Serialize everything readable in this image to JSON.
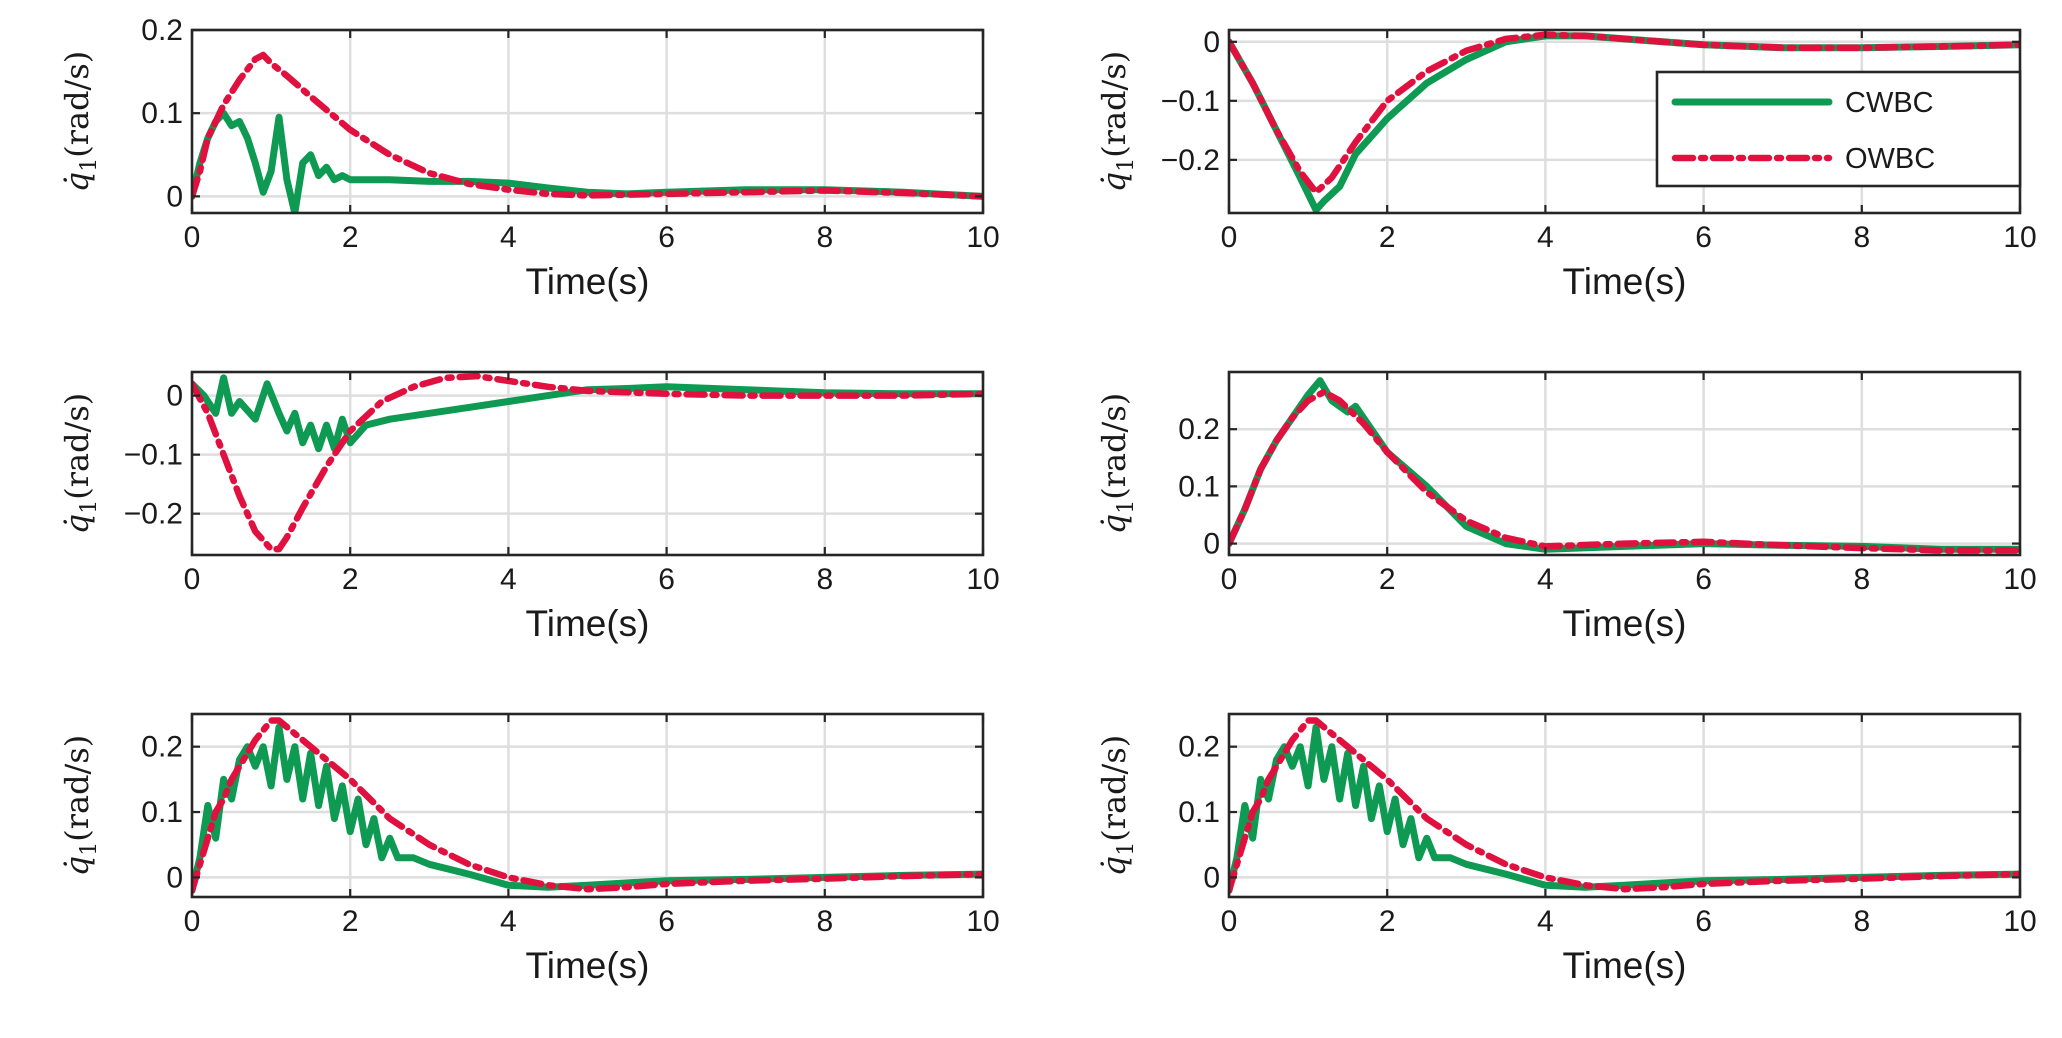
{
  "colors": {
    "CWBC": "#0e9a52",
    "OWBC": "#e0103f"
  },
  "chart_data": [
    {
      "type": "line",
      "position": "top-left",
      "title": "",
      "xlabel": "Time(s)",
      "ylabel_symbol": "q̇",
      "ylabel_sub": "1",
      "ylabel_unit": "(rad/s)",
      "xlim": [
        0,
        10
      ],
      "ylim": [
        -0.02,
        0.2
      ],
      "xticks": [
        0,
        2,
        4,
        6,
        8,
        10
      ],
      "yticks": [
        0,
        0.1,
        0.2
      ],
      "ytick_labels": [
        "0",
        "0.1",
        "0.2"
      ],
      "grid": true,
      "series": [
        {
          "name": "CWBC",
          "style": "solid",
          "x": [
            0,
            0.1,
            0.2,
            0.3,
            0.4,
            0.5,
            0.6,
            0.7,
            0.8,
            0.9,
            1.0,
            1.1,
            1.2,
            1.3,
            1.4,
            1.5,
            1.6,
            1.7,
            1.8,
            1.9,
            2.0,
            2.5,
            3.0,
            3.5,
            4.0,
            4.5,
            5.0,
            5.5,
            6.0,
            7.0,
            8.0,
            9.0,
            10.0
          ],
          "y": [
            0,
            0.04,
            0.07,
            0.09,
            0.1,
            0.085,
            0.09,
            0.07,
            0.04,
            0.005,
            0.03,
            0.095,
            0.02,
            -0.02,
            0.04,
            0.05,
            0.025,
            0.035,
            0.02,
            0.025,
            0.02,
            0.02,
            0.018,
            0.018,
            0.016,
            0.01,
            0.005,
            0.003,
            0.005,
            0.008,
            0.008,
            0.005,
            0.0
          ]
        },
        {
          "name": "OWBC",
          "style": "dashdot",
          "x": [
            0,
            0.1,
            0.2,
            0.4,
            0.6,
            0.8,
            0.9,
            1.0,
            1.2,
            1.5,
            2.0,
            2.5,
            3.0,
            3.5,
            4.0,
            4.5,
            5.0,
            6.0,
            7.0,
            8.0,
            9.0,
            10.0
          ],
          "y": [
            0,
            0.03,
            0.07,
            0.11,
            0.14,
            0.165,
            0.17,
            0.16,
            0.145,
            0.12,
            0.08,
            0.05,
            0.028,
            0.015,
            0.008,
            0.003,
            0.001,
            0.003,
            0.005,
            0.007,
            0.004,
            0.0
          ]
        }
      ]
    },
    {
      "type": "line",
      "position": "top-right",
      "title": "",
      "xlabel": "Time(s)",
      "ylabel_symbol": "q̇",
      "ylabel_sub": "1",
      "ylabel_unit": "(rad/s)",
      "xlim": [
        0,
        10
      ],
      "ylim": [
        -0.29,
        0.02
      ],
      "xticks": [
        0,
        2,
        4,
        6,
        8,
        10
      ],
      "yticks": [
        -0.2,
        -0.1,
        0
      ],
      "ytick_labels": [
        "−0.2",
        "−0.1",
        "0"
      ],
      "grid": true,
      "legend": {
        "location": "top-right",
        "entries": [
          "CWBC",
          "OWBC"
        ]
      },
      "series": [
        {
          "name": "CWBC",
          "style": "solid",
          "x": [
            0,
            0.3,
            0.6,
            0.9,
            1.1,
            1.2,
            1.4,
            1.6,
            1.8,
            2.0,
            2.5,
            3.0,
            3.5,
            4.0,
            4.5,
            5.0,
            6.0,
            7.0,
            8.0,
            9.0,
            10.0
          ],
          "y": [
            0,
            -0.07,
            -0.15,
            -0.23,
            -0.285,
            -0.27,
            -0.245,
            -0.19,
            -0.16,
            -0.13,
            -0.07,
            -0.03,
            0.0,
            0.01,
            0.01,
            0.005,
            -0.005,
            -0.01,
            -0.01,
            -0.008,
            -0.005
          ]
        },
        {
          "name": "OWBC",
          "style": "dashdot",
          "x": [
            0,
            0.3,
            0.6,
            0.9,
            1.1,
            1.3,
            1.6,
            2.0,
            2.5,
            3.0,
            3.5,
            4.0,
            4.5,
            5.0,
            6.0,
            7.0,
            8.0,
            9.0,
            10.0
          ],
          "y": [
            0,
            -0.07,
            -0.15,
            -0.22,
            -0.255,
            -0.23,
            -0.17,
            -0.1,
            -0.05,
            -0.015,
            0.005,
            0.012,
            0.01,
            0.005,
            -0.005,
            -0.01,
            -0.01,
            -0.008,
            -0.005
          ]
        }
      ]
    },
    {
      "type": "line",
      "position": "middle-left",
      "title": "",
      "xlabel": "Time(s)",
      "ylabel_symbol": "q̇",
      "ylabel_sub": "1",
      "ylabel_unit": "(rad/s)",
      "xlim": [
        0,
        10
      ],
      "ylim": [
        -0.27,
        0.04
      ],
      "xticks": [
        0,
        2,
        4,
        6,
        8,
        10
      ],
      "yticks": [
        -0.2,
        -0.1,
        0
      ],
      "ytick_labels": [
        "−0.2",
        "−0.1",
        "0"
      ],
      "grid": true,
      "series": [
        {
          "name": "CWBC",
          "style": "solid",
          "x": [
            0,
            0.15,
            0.3,
            0.4,
            0.5,
            0.6,
            0.8,
            0.95,
            1.1,
            1.2,
            1.3,
            1.4,
            1.5,
            1.6,
            1.7,
            1.8,
            1.9,
            2.0,
            2.2,
            2.5,
            3.0,
            3.5,
            4.0,
            4.5,
            5.0,
            5.5,
            6.0,
            7.0,
            8.0,
            9.0,
            10.0
          ],
          "y": [
            0.02,
            0.0,
            -0.03,
            0.03,
            -0.03,
            -0.01,
            -0.04,
            0.02,
            -0.03,
            -0.06,
            -0.03,
            -0.08,
            -0.05,
            -0.09,
            -0.05,
            -0.09,
            -0.04,
            -0.08,
            -0.05,
            -0.04,
            -0.03,
            -0.02,
            -0.01,
            0.0,
            0.01,
            0.012,
            0.015,
            0.01,
            0.005,
            0.003,
            0.003
          ]
        },
        {
          "name": "OWBC",
          "style": "dashdot",
          "x": [
            0,
            0.2,
            0.4,
            0.6,
            0.8,
            1.0,
            1.1,
            1.2,
            1.4,
            1.7,
            2.0,
            2.4,
            2.8,
            3.2,
            3.6,
            4.0,
            4.5,
            5.0,
            6.0,
            7.0,
            8.0,
            9.0,
            10.0
          ],
          "y": [
            0.02,
            -0.03,
            -0.1,
            -0.17,
            -0.23,
            -0.26,
            -0.26,
            -0.24,
            -0.19,
            -0.12,
            -0.06,
            -0.01,
            0.015,
            0.03,
            0.033,
            0.025,
            0.015,
            0.008,
            0.003,
            0.0,
            0.0,
            0.0,
            0.003
          ]
        }
      ]
    },
    {
      "type": "line",
      "position": "middle-right",
      "title": "",
      "xlabel": "Time(s)",
      "ylabel_symbol": "q̇",
      "ylabel_sub": "1",
      "ylabel_unit": "(rad/s)",
      "xlim": [
        0,
        10
      ],
      "ylim": [
        -0.02,
        0.3
      ],
      "xticks": [
        0,
        2,
        4,
        6,
        8,
        10
      ],
      "yticks": [
        0,
        0.1,
        0.2
      ],
      "ytick_labels": [
        "0",
        "0.1",
        "0.2"
      ],
      "grid": true,
      "series": [
        {
          "name": "CWBC",
          "style": "solid",
          "x": [
            0,
            0.2,
            0.4,
            0.6,
            0.8,
            1.0,
            1.15,
            1.3,
            1.5,
            1.6,
            1.7,
            2.0,
            2.5,
            3.0,
            3.5,
            4.0,
            5.0,
            6.0,
            7.0,
            8.0,
            9.0,
            10.0
          ],
          "y": [
            0,
            0.06,
            0.13,
            0.18,
            0.22,
            0.26,
            0.285,
            0.25,
            0.23,
            0.24,
            0.22,
            0.16,
            0.1,
            0.03,
            0.0,
            -0.01,
            -0.005,
            0.0,
            -0.003,
            -0.005,
            -0.01,
            -0.01
          ]
        },
        {
          "name": "OWBC",
          "style": "dashdot",
          "x": [
            0,
            0.2,
            0.4,
            0.6,
            0.8,
            1.0,
            1.2,
            1.4,
            1.7,
            2.0,
            2.5,
            3.0,
            3.5,
            4.0,
            5.0,
            6.0,
            7.0,
            8.0,
            9.0,
            10.0
          ],
          "y": [
            0,
            0.06,
            0.13,
            0.18,
            0.22,
            0.25,
            0.265,
            0.25,
            0.21,
            0.16,
            0.09,
            0.04,
            0.01,
            -0.005,
            0.0,
            0.003,
            -0.003,
            -0.008,
            -0.012,
            -0.012
          ]
        }
      ]
    },
    {
      "type": "line",
      "position": "bottom-left",
      "title": "",
      "xlabel": "Time(s)",
      "ylabel_symbol": "q̇",
      "ylabel_sub": "1",
      "ylabel_unit": "(rad/s)",
      "xlim": [
        0,
        10
      ],
      "ylim": [
        -0.03,
        0.25
      ],
      "xticks": [
        0,
        2,
        4,
        6,
        8,
        10
      ],
      "yticks": [
        0,
        0.1,
        0.2
      ],
      "ytick_labels": [
        "0",
        "0.1",
        "0.2"
      ],
      "grid": true,
      "series": [
        {
          "name": "CWBC",
          "style": "solid",
          "x": [
            0,
            0.1,
            0.2,
            0.3,
            0.4,
            0.5,
            0.6,
            0.7,
            0.8,
            0.9,
            1.0,
            1.1,
            1.2,
            1.3,
            1.4,
            1.5,
            1.6,
            1.7,
            1.8,
            1.9,
            2.0,
            2.1,
            2.2,
            2.3,
            2.4,
            2.5,
            2.6,
            2.8,
            3.0,
            3.5,
            4.0,
            4.5,
            5.0,
            6.0,
            7.0,
            8.0,
            9.0,
            10.0
          ],
          "y": [
            -0.02,
            0.03,
            0.11,
            0.06,
            0.15,
            0.12,
            0.18,
            0.2,
            0.17,
            0.2,
            0.14,
            0.23,
            0.15,
            0.2,
            0.12,
            0.19,
            0.11,
            0.17,
            0.09,
            0.14,
            0.07,
            0.12,
            0.05,
            0.09,
            0.03,
            0.06,
            0.03,
            0.03,
            0.02,
            0.005,
            -0.012,
            -0.015,
            -0.012,
            -0.005,
            -0.003,
            0.0,
            0.003,
            0.005
          ]
        },
        {
          "name": "OWBC",
          "style": "dashdot",
          "x": [
            0,
            0.1,
            0.2,
            0.3,
            0.4,
            0.5,
            0.6,
            0.7,
            0.8,
            0.9,
            1.0,
            1.1,
            1.3,
            1.6,
            2.0,
            2.5,
            3.0,
            3.5,
            4.0,
            4.5,
            5.0,
            5.5,
            6.0,
            7.0,
            8.0,
            9.0,
            10.0
          ],
          "y": [
            -0.02,
            0.02,
            0.06,
            0.1,
            0.12,
            0.15,
            0.17,
            0.19,
            0.21,
            0.225,
            0.24,
            0.24,
            0.22,
            0.19,
            0.15,
            0.09,
            0.05,
            0.02,
            0.0,
            -0.012,
            -0.018,
            -0.015,
            -0.01,
            -0.005,
            -0.002,
            0.002,
            0.005
          ]
        }
      ]
    },
    {
      "type": "line",
      "position": "bottom-right",
      "title": "",
      "xlabel": "Time(s)",
      "ylabel_symbol": "q̇",
      "ylabel_sub": "1",
      "ylabel_unit": "(rad/s)",
      "xlim": [
        0,
        10
      ],
      "ylim": [
        -0.03,
        0.25
      ],
      "xticks": [
        0,
        2,
        4,
        6,
        8,
        10
      ],
      "yticks": [
        0,
        0.1,
        0.2
      ],
      "ytick_labels": [
        "0",
        "0.1",
        "0.2"
      ],
      "grid": true,
      "series": [
        {
          "name": "CWBC",
          "style": "solid",
          "x": [
            0,
            0.1,
            0.2,
            0.3,
            0.4,
            0.5,
            0.6,
            0.7,
            0.8,
            0.9,
            1.0,
            1.1,
            1.2,
            1.3,
            1.4,
            1.5,
            1.6,
            1.7,
            1.8,
            1.9,
            2.0,
            2.1,
            2.2,
            2.3,
            2.4,
            2.5,
            2.6,
            2.8,
            3.0,
            3.5,
            4.0,
            4.5,
            5.0,
            6.0,
            7.0,
            8.0,
            9.0,
            10.0
          ],
          "y": [
            -0.02,
            0.03,
            0.11,
            0.06,
            0.15,
            0.12,
            0.18,
            0.2,
            0.17,
            0.2,
            0.14,
            0.23,
            0.15,
            0.2,
            0.12,
            0.19,
            0.11,
            0.17,
            0.09,
            0.14,
            0.07,
            0.12,
            0.05,
            0.09,
            0.03,
            0.06,
            0.03,
            0.03,
            0.02,
            0.005,
            -0.012,
            -0.015,
            -0.012,
            -0.005,
            -0.003,
            0.0,
            0.003,
            0.005
          ]
        },
        {
          "name": "OWBC",
          "style": "dashdot",
          "x": [
            0,
            0.1,
            0.2,
            0.3,
            0.4,
            0.5,
            0.6,
            0.7,
            0.8,
            0.9,
            1.0,
            1.1,
            1.3,
            1.6,
            2.0,
            2.5,
            3.0,
            3.5,
            4.0,
            4.5,
            5.0,
            5.5,
            6.0,
            7.0,
            8.0,
            9.0,
            10.0
          ],
          "y": [
            -0.02,
            0.02,
            0.06,
            0.1,
            0.12,
            0.15,
            0.17,
            0.19,
            0.21,
            0.225,
            0.24,
            0.24,
            0.22,
            0.19,
            0.15,
            0.09,
            0.05,
            0.02,
            0.0,
            -0.012,
            -0.018,
            -0.015,
            -0.01,
            -0.005,
            -0.002,
            0.002,
            0.005
          ]
        }
      ]
    }
  ]
}
